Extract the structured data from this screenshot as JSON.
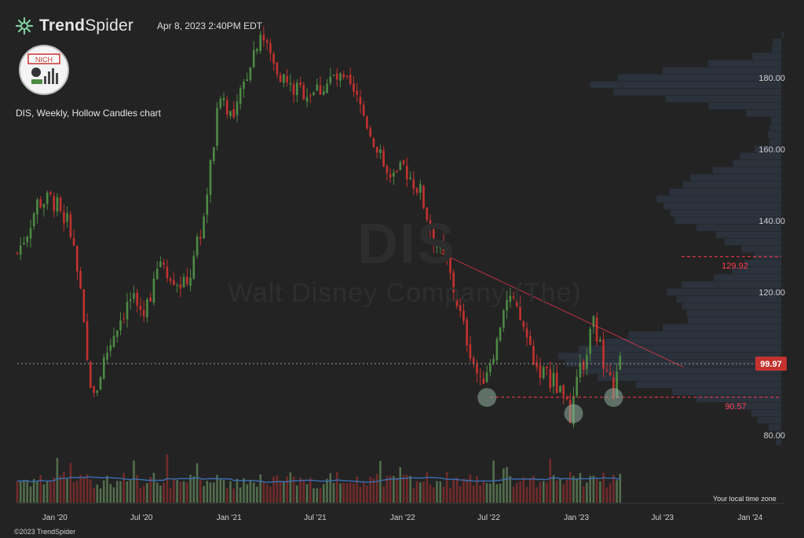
{
  "header": {
    "brand_prefix": "Trend",
    "brand_suffix": "Spider",
    "timestamp": "Apr 8, 2023 2:40PM EDT",
    "logo_text": "NICH"
  },
  "chart_title": "DIS, Weekly, Hollow Candles chart",
  "watermark": {
    "ticker": "DIS",
    "name": "Walt Disney Company (The)"
  },
  "footer": {
    "timezone_label": "Your local time zone",
    "copyright": "©2023 TrendSpider"
  },
  "colors": {
    "up": "#4d8a44",
    "down": "#c3322f",
    "background": "#232323",
    "volume_avg": "#3a6fb5",
    "accent": "#ff3b4f",
    "profile": "#2f3846"
  },
  "chart_data": {
    "type": "candlestick",
    "symbol": "DIS",
    "interval": "Weekly",
    "y_range": [
      76,
      193
    ],
    "y_ticks": [
      "80.00",
      "100.00",
      "120.00",
      "140.00",
      "160.00",
      "180.00"
    ],
    "x_ticks": [
      "Jan '20",
      "Jul '20",
      "Jan '21",
      "Jul '21",
      "Jan '22",
      "Jul '22",
      "Jan '23",
      "Jul '23",
      "Jan '24"
    ],
    "x_range": [
      "2019-10-14",
      "2024-02-19"
    ],
    "price_path": [
      [
        "2019-10-14",
        131
      ],
      [
        "2019-11-04",
        137
      ],
      [
        "2019-11-25",
        145
      ],
      [
        "2019-12-23",
        146
      ],
      [
        "2020-01-13",
        143
      ],
      [
        "2020-02-03",
        138
      ],
      [
        "2020-02-24",
        119
      ],
      [
        "2020-03-09",
        100
      ],
      [
        "2020-03-23",
        90
      ],
      [
        "2020-04-13",
        101
      ],
      [
        "2020-05-11",
        111
      ],
      [
        "2020-06-08",
        118
      ],
      [
        "2020-07-06",
        114
      ],
      [
        "2020-08-10",
        129
      ],
      [
        "2020-09-07",
        124
      ],
      [
        "2020-10-05",
        121
      ],
      [
        "2020-11-09",
        141
      ],
      [
        "2020-12-14",
        176
      ],
      [
        "2021-01-11",
        168
      ],
      [
        "2021-02-15",
        185
      ],
      [
        "2021-03-08",
        193
      ],
      [
        "2021-04-05",
        184
      ],
      [
        "2021-05-10",
        177
      ],
      [
        "2021-06-14",
        176
      ],
      [
        "2021-07-12",
        177
      ],
      [
        "2021-08-09",
        180
      ],
      [
        "2021-09-06",
        178
      ],
      [
        "2021-10-04",
        172
      ],
      [
        "2021-11-08",
        160
      ],
      [
        "2021-12-06",
        150
      ],
      [
        "2022-01-03",
        155
      ],
      [
        "2022-02-07",
        148
      ],
      [
        "2022-03-07",
        135
      ],
      [
        "2022-04-04",
        128
      ],
      [
        "2022-05-09",
        110
      ],
      [
        "2022-06-13",
        94
      ],
      [
        "2022-07-04",
        101
      ],
      [
        "2022-08-15",
        118
      ],
      [
        "2022-09-12",
        110
      ],
      [
        "2022-10-10",
        99
      ],
      [
        "2022-11-14",
        95
      ],
      [
        "2022-12-19",
        86
      ],
      [
        "2023-01-02",
        94
      ],
      [
        "2023-02-06",
        111
      ],
      [
        "2023-03-06",
        98
      ],
      [
        "2023-03-20",
        92
      ],
      [
        "2023-04-03",
        99.97
      ]
    ],
    "last_price": "99.97",
    "levels": [
      {
        "label": "129.92",
        "value": 129.92,
        "style": "dashed"
      },
      {
        "label": "90.57",
        "value": 90.57,
        "style": "dashed"
      },
      {
        "label": "99.97",
        "value": 99.97,
        "style": "dotted"
      }
    ],
    "trendline": {
      "from": [
        "2022-03-21",
        131
      ],
      "to": [
        "2023-08-14",
        99
      ]
    },
    "marked_lows": [
      [
        "2022-06-27",
        90.5
      ],
      [
        "2022-12-26",
        86
      ],
      [
        "2023-03-20",
        90.5
      ]
    ],
    "volume_profile": "horizontal histogram on right side",
    "volume": "bars under price with moving-average line",
    "grid": false
  }
}
